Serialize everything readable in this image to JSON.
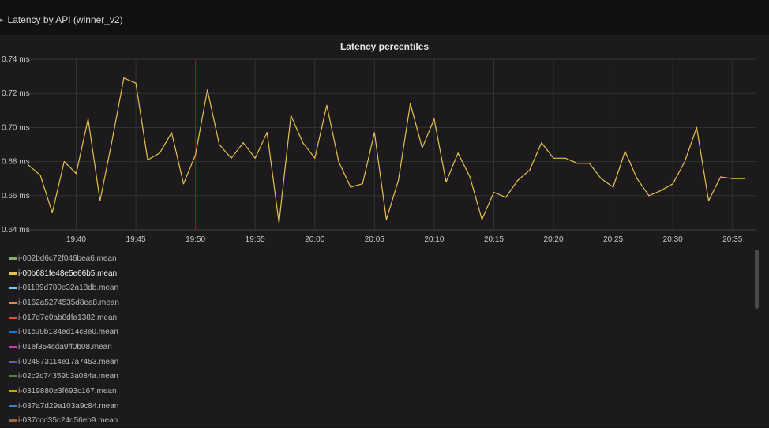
{
  "row": {
    "title": "Latency by API (winner_v2)",
    "chevron_icon": "chevron-right-icon"
  },
  "panel": {
    "title": "Latency percentiles"
  },
  "chart_data": {
    "type": "line",
    "title": "Latency percentiles",
    "xlabel": "",
    "ylabel": "",
    "ylim": [
      0.64,
      0.74
    ],
    "y_ticks": [
      "0.64 ms",
      "0.66 ms",
      "0.68 ms",
      "0.70 ms",
      "0.72 ms",
      "0.74 ms"
    ],
    "y_tick_values": [
      0.64,
      0.66,
      0.68,
      0.7,
      0.72,
      0.74
    ],
    "x_ticks": [
      "19:40",
      "19:45",
      "19:50",
      "19:55",
      "20:00",
      "20:05",
      "20:10",
      "20:15",
      "20:20",
      "20:25",
      "20:30",
      "20:35"
    ],
    "x_range": [
      "19:36",
      "20:37"
    ],
    "grid": true,
    "marker_time": "19:50",
    "series": [
      {
        "name": "i-00b681fe48e5e66b5.mean",
        "color": "#e5c24c",
        "x": [
          "19:36",
          "19:37",
          "19:38",
          "19:39",
          "19:40",
          "19:41",
          "19:42",
          "19:43",
          "19:44",
          "19:45",
          "19:46",
          "19:47",
          "19:48",
          "19:49",
          "19:50",
          "19:51",
          "19:52",
          "19:53",
          "19:54",
          "19:55",
          "19:56",
          "19:57",
          "19:58",
          "19:59",
          "20:00",
          "20:01",
          "20:02",
          "20:03",
          "20:04",
          "20:05",
          "20:06",
          "20:07",
          "20:08",
          "20:09",
          "20:10",
          "20:11",
          "20:12",
          "20:13",
          "20:14",
          "20:15",
          "20:16",
          "20:17",
          "20:18",
          "20:19",
          "20:20",
          "20:21",
          "20:22",
          "20:23",
          "20:24",
          "20:25",
          "20:26",
          "20:27",
          "20:28",
          "20:29",
          "20:30",
          "20:31",
          "20:32",
          "20:33",
          "20:34",
          "20:35",
          "20:36"
        ],
        "values": [
          0.678,
          0.672,
          0.65,
          0.68,
          0.673,
          0.705,
          0.657,
          0.692,
          0.729,
          0.726,
          0.681,
          0.685,
          0.697,
          0.667,
          0.684,
          0.722,
          0.69,
          0.682,
          0.691,
          0.682,
          0.697,
          0.644,
          0.707,
          0.691,
          0.682,
          0.713,
          0.68,
          0.665,
          0.667,
          0.697,
          0.646,
          0.669,
          0.714,
          0.688,
          0.705,
          0.668,
          0.685,
          0.671,
          0.646,
          0.662,
          0.659,
          0.669,
          0.675,
          0.691,
          0.682,
          0.682,
          0.679,
          0.679,
          0.67,
          0.665,
          0.686,
          0.67,
          0.66,
          0.663,
          0.667,
          0.68,
          0.7,
          0.657,
          0.671,
          0.67,
          0.67
        ]
      }
    ]
  },
  "legend": {
    "items": [
      {
        "label": "i-002bd6c72f046bea6.mean",
        "color": "#7eb26d",
        "highlight": false
      },
      {
        "label": "i-00b681fe48e5e66b5.mean",
        "color": "#e5c24c",
        "highlight": true
      },
      {
        "label": "i-01189d780e32a18db.mean",
        "color": "#6ed0e0",
        "highlight": false
      },
      {
        "label": "i-0162a5274535d8ea8.mean",
        "color": "#ef843c",
        "highlight": false
      },
      {
        "label": "i-017d7e0ab8dfa1382.mean",
        "color": "#e24d42",
        "highlight": false
      },
      {
        "label": "i-01c99b134ed14c8e0.mean",
        "color": "#1f78c1",
        "highlight": false
      },
      {
        "label": "i-01ef354cda9ff0b08.mean",
        "color": "#ba43a9",
        "highlight": false
      },
      {
        "label": "i-024873114e17a7453.mean",
        "color": "#705da0",
        "highlight": false
      },
      {
        "label": "i-02c2c74359b3a084a.mean",
        "color": "#508642",
        "highlight": false
      },
      {
        "label": "i-0319880e3f693c167.mean",
        "color": "#cca300",
        "highlight": false
      },
      {
        "label": "i-037a7d29a103a9c84.mean",
        "color": "#447ebc",
        "highlight": false
      },
      {
        "label": "i-037ccd35c24d56eb9.mean",
        "color": "#c15c17",
        "highlight": false
      }
    ]
  }
}
